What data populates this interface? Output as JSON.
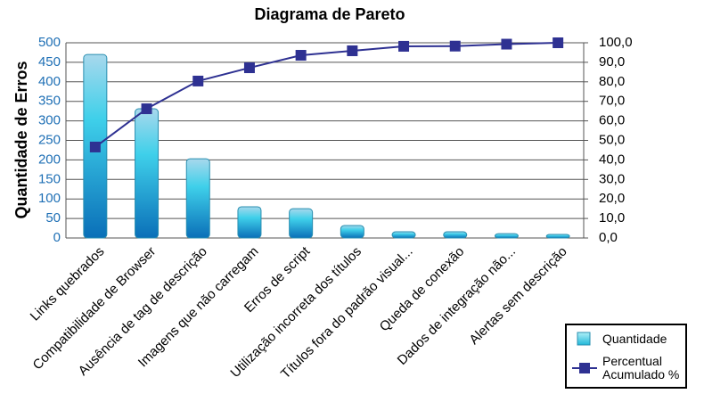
{
  "chart_data": {
    "type": "pareto",
    "title": "Diagrama de Pareto",
    "y_label": "Quantidade de Erros",
    "categories": [
      "Links quebrados",
      "Compatibilidade de Browser",
      "Ausência de tag de descrição",
      "Imagens que não carregam",
      "Erros de script",
      "Utilização incorreta dos títulos",
      "Títulos fora do padrão visual...",
      "Queda de conexão",
      "Dados de integração não...",
      "Alertas sem descrição"
    ],
    "series": [
      {
        "name": "Quantidade",
        "color": "#2fb8e0",
        "type": "bar",
        "values": [
          470,
          331,
          203,
          80,
          75,
          32,
          16,
          16,
          11,
          9
        ]
      },
      {
        "name": "Percentual Acumulado %",
        "color": "#2e3192",
        "type": "line",
        "axis": "y2",
        "values": [
          46.6,
          66.2,
          80.4,
          87.2,
          93.6,
          95.9,
          98.2,
          98.3,
          99.3,
          100
        ]
      }
    ],
    "ylim": [
      0,
      500
    ],
    "yticks": [
      0,
      50,
      100,
      150,
      200,
      250,
      300,
      350,
      400,
      450,
      500
    ],
    "y2lim": [
      0,
      100
    ],
    "y2ticks": [
      {
        "value": 0,
        "label": "0,0"
      },
      {
        "value": 10,
        "label": "10,0"
      },
      {
        "value": 20,
        "label": "20,0"
      },
      {
        "value": 30,
        "label": "30,0"
      },
      {
        "value": 40,
        "label": "40,0"
      },
      {
        "value": 50,
        "label": "50,0"
      },
      {
        "value": 60,
        "label": "60,0"
      },
      {
        "value": 70,
        "label": "70,0"
      },
      {
        "value": 80,
        "label": "80,0"
      },
      {
        "value": 90,
        "label": "90,0"
      },
      {
        "value": 100,
        "label": "100,0"
      }
    ],
    "grid": true,
    "legend": "bottom-right"
  }
}
